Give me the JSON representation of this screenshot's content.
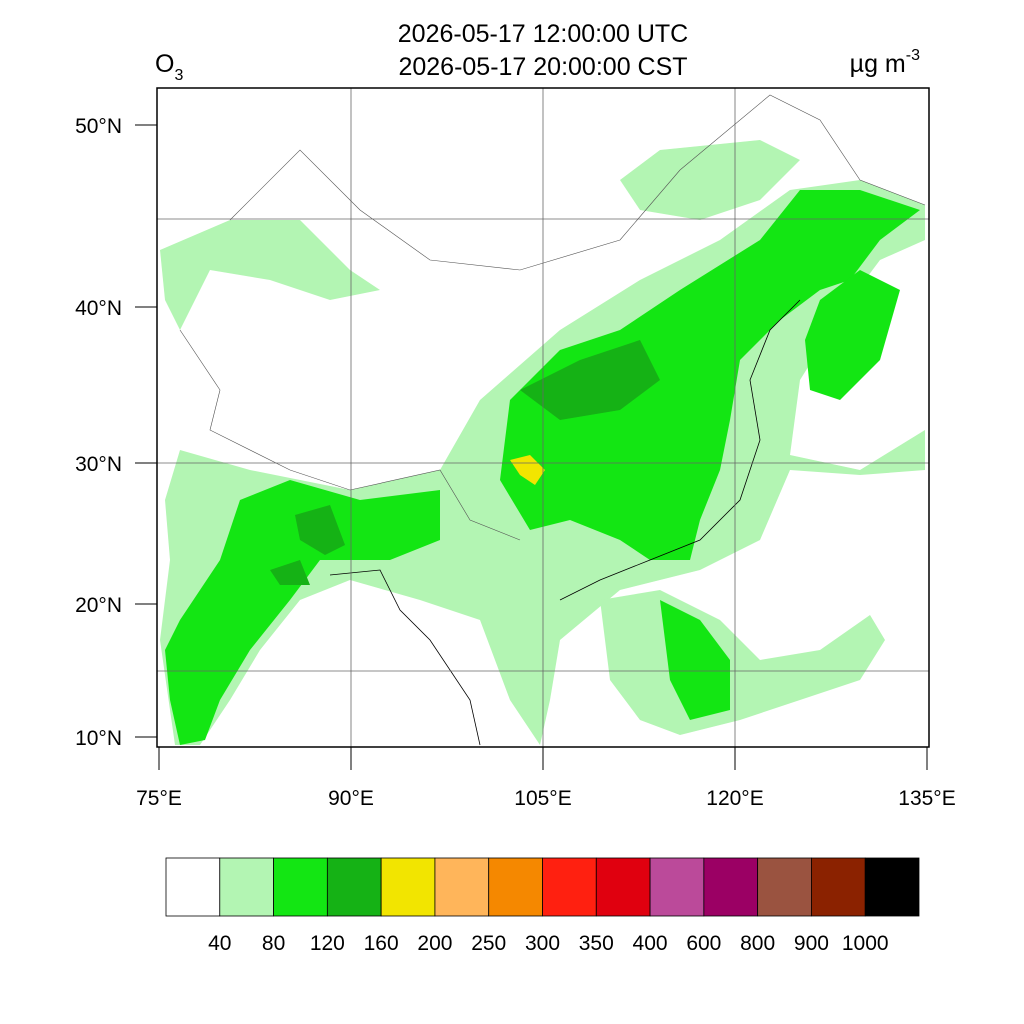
{
  "header": {
    "title_lines": [
      "2026-05-17 12:00:00 UTC",
      "2026-05-17 20:00:00 CST"
    ],
    "variable": {
      "name": "O",
      "subscript": "3"
    },
    "unit": {
      "text": "µg m",
      "superscript": "-3"
    }
  },
  "map": {
    "lat_labels": [
      "50°N",
      "40°N",
      "30°N",
      "20°N",
      "10°N"
    ],
    "lon_labels": [
      "75°E",
      "90°E",
      "105°E",
      "120°E",
      "135°E"
    ]
  },
  "colorbar": {
    "colors": [
      "#ffffff",
      "#b3f5b3",
      "#13e613",
      "#15b215",
      "#f2e500",
      "#ffb55a",
      "#f58800",
      "#ff2010",
      "#e0000f",
      "#bb4a9a",
      "#9b0064",
      "#9a5340",
      "#8b2200",
      "#000000"
    ],
    "labels": [
      "40",
      "80",
      "120",
      "160",
      "200",
      "250",
      "300",
      "350",
      "400",
      "600",
      "800",
      "900",
      "1000"
    ]
  }
}
